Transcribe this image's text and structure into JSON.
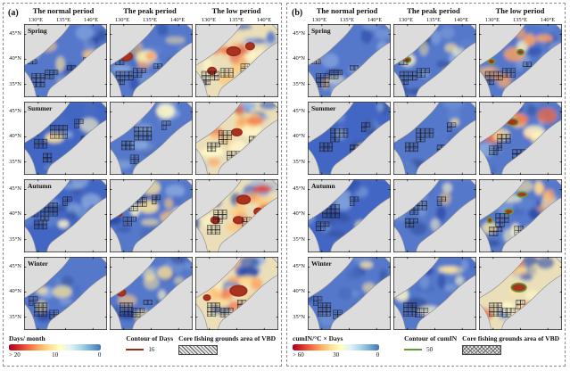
{
  "figure": {
    "type": "multi-panel seasonal map grid",
    "region": "Sea of Japan",
    "seasons": [
      "Spring",
      "Summer",
      "Autumn",
      "Winter"
    ],
    "periods": [
      "normal",
      "peak",
      "low"
    ]
  },
  "panels": [
    {
      "label": "(a)",
      "column_titles": [
        "The normal period",
        "The peak period",
        "The low period"
      ],
      "lon_ticks": [
        "130°E",
        "135°E",
        "140°E"
      ],
      "lat_ticks": [
        "45°N",
        "40°N",
        "35°N"
      ],
      "contour_color": "#9c2b1a",
      "legend": {
        "colorbar_title": "Days/ month",
        "colorbar_labels": [
          "> 20",
          "10",
          "0"
        ],
        "colorbar_colors": [
          "#a50026",
          "#d73027",
          "#f46d43",
          "#fdae61",
          "#fee090",
          "#ffffbf",
          "#e0f3f8",
          "#abd9e9",
          "#74add1",
          "#4575b4"
        ],
        "contour_title": "Contour of Days",
        "contour_value": "16",
        "hatch_title": "Core fishing grounds area of VBD",
        "hatch_style": "diag"
      },
      "rows": [
        {
          "season": "Spring",
          "maps": [
            {
              "period": "normal",
              "warmth": 0.22,
              "seed": 11,
              "contours": [],
              "hatch": [
                [
                  17,
                  66,
                  9
                ],
                [
                  33,
                  62,
                  5
                ],
                [
                  10,
                  47,
                  2
                ],
                [
                  57,
                  54,
                  2
                ],
                [
                  74,
                  42,
                  1
                ]
              ]
            },
            {
              "period": "peak",
              "warmth": 0.38,
              "seed": 12,
              "contours": [
                [
                  20,
                  38,
                  7,
                  5
                ]
              ],
              "hatch": [
                [
                  18,
                  66,
                  10
                ],
                [
                  36,
                  60,
                  5
                ],
                [
                  12,
                  48,
                  2
                ],
                [
                  58,
                  52,
                  2
                ]
              ]
            },
            {
              "period": "low",
              "warmth": 0.62,
              "seed": 13,
              "contours": [
                [
                  22,
                  26,
                  6,
                  4
                ],
                [
                  46,
                  32,
                  8,
                  5
                ],
                [
                  20,
                  55,
                  5,
                  4
                ],
                [
                  66,
                  26,
                  5,
                  4
                ]
              ],
              "hatch": [
                [
                  18,
                  66,
                  10
                ],
                [
                  38,
                  60,
                  6
                ],
                [
                  60,
                  52,
                  3
                ]
              ]
            }
          ]
        },
        {
          "season": "Summer",
          "maps": [
            {
              "period": "normal",
              "warmth": 0.06,
              "seed": 14,
              "contours": [],
              "hatch": [
                [
                  42,
                  38,
                  12
                ],
                [
                  20,
                  52,
                  6
                ],
                [
                  28,
                  66,
                  4
                ],
                [
                  66,
                  26,
                  3
                ],
                [
                  74,
                  46,
                  3
                ],
                [
                  12,
                  40,
                  2
                ]
              ]
            },
            {
              "period": "peak",
              "warmth": 0.14,
              "seed": 15,
              "contours": [],
              "hatch": [
                [
                  40,
                  40,
                  12
                ],
                [
                  22,
                  54,
                  6
                ],
                [
                  30,
                  68,
                  4
                ],
                [
                  68,
                  28,
                  3
                ],
                [
                  76,
                  48,
                  2
                ]
              ]
            },
            {
              "period": "low",
              "warmth": 0.58,
              "seed": 16,
              "contours": [
                [
                  50,
                  36,
                  6,
                  4
                ]
              ],
              "hatch": [
                [
                  36,
                  42,
                  8
                ],
                [
                  22,
                  56,
                  5
                ],
                [
                  46,
                  66,
                  5
                ],
                [
                  70,
                  46,
                  3
                ]
              ]
            }
          ]
        },
        {
          "season": "Autumn",
          "maps": [
            {
              "period": "normal",
              "warmth": 0.03,
              "seed": 17,
              "contours": [],
              "hatch": [
                [
                  30,
                  38,
                  14
                ],
                [
                  20,
                  56,
                  6
                ],
                [
                  52,
                  26,
                  3
                ],
                [
                  12,
                  44,
                  2
                ]
              ]
            },
            {
              "period": "peak",
              "warmth": 0.28,
              "seed": 18,
              "contours": [
                [
                  28,
                  17,
                  4,
                  3
                ],
                [
                  12,
                  40,
                  3,
                  3
                ]
              ],
              "hatch": [
                [
                  34,
                  32,
                  10
                ],
                [
                  24,
                  52,
                  5
                ],
                [
                  56,
                  24,
                  3
                ]
              ]
            },
            {
              "period": "low",
              "warmth": 0.78,
              "seed": 19,
              "contours": [
                [
                  28,
                  22,
                  6,
                  4
                ],
                [
                  58,
                  24,
                  8,
                  5
                ],
                [
                  24,
                  48,
                  5,
                  4
                ],
                [
                  52,
                  48,
                  6,
                  4
                ],
                [
                  76,
                  38,
                  5,
                  4
                ]
              ],
              "hatch": [
                [
                  30,
                  44,
                  8
                ],
                [
                  22,
                  62,
                  6
                ],
                [
                  62,
                  50,
                  3
                ]
              ]
            }
          ]
        },
        {
          "season": "Winter",
          "maps": [
            {
              "period": "normal",
              "warmth": 0.15,
              "seed": 20,
              "contours": [],
              "hatch": [
                [
                  20,
                  62,
                  9
                ],
                [
                  11,
                  52,
                  3
                ],
                [
                  36,
                  68,
                  4
                ]
              ]
            },
            {
              "period": "peak",
              "warmth": 0.32,
              "seed": 21,
              "contours": [
                [
                  28,
                  22,
                  4,
                  3
                ],
                [
                  14,
                  42,
                  5,
                  4
                ]
              ],
              "hatch": [
                [
                  20,
                  62,
                  9
                ],
                [
                  34,
                  68,
                  5
                ],
                [
                  46,
                  56,
                  2
                ]
              ]
            },
            {
              "period": "low",
              "warmth": 0.72,
              "seed": 22,
              "contours": [
                [
                  22,
                  24,
                  5,
                  4
                ],
                [
                  52,
                  40,
                  10,
                  6
                ],
                [
                  14,
                  48,
                  4,
                  3
                ]
              ],
              "hatch": [
                [
                  22,
                  62,
                  8
                ],
                [
                  38,
                  68,
                  5
                ],
                [
                  56,
                  56,
                  3
                ]
              ]
            }
          ]
        }
      ]
    },
    {
      "label": "(b)",
      "column_titles": [
        "The normal period",
        "The peak period",
        "The low period"
      ],
      "lon_ticks": [
        "130°E",
        "135°E",
        "140°E"
      ],
      "lat_ticks": [
        "45°N",
        "40°N",
        "35°N"
      ],
      "contour_color": "#679a3c",
      "legend": {
        "colorbar_title": "cumIN/°C × Days",
        "colorbar_labels": [
          "> 60",
          "30",
          "0"
        ],
        "colorbar_colors": [
          "#a50026",
          "#d73027",
          "#f46d43",
          "#fdae61",
          "#fee090",
          "#ffffbf",
          "#e0f3f8",
          "#abd9e9",
          "#74add1",
          "#4575b4"
        ],
        "contour_title": "Contour of cumIN",
        "contour_value": "50",
        "hatch_title": "Core fishing grounds area of VBD",
        "hatch_style": "cross"
      },
      "rows": [
        {
          "season": "Spring",
          "maps": [
            {
              "period": "normal",
              "warmth": 0.14,
              "seed": 31,
              "contours": [],
              "hatch": [
                [
                  18,
                  66,
                  9
                ],
                [
                  34,
                  62,
                  5
                ],
                [
                  10,
                  47,
                  2
                ],
                [
                  56,
                  54,
                  2
                ]
              ]
            },
            {
              "period": "peak",
              "warmth": 0.32,
              "seed": 32,
              "contours": [
                [
                  17,
                  42,
                  4,
                  3
                ]
              ],
              "hatch": [
                [
                  18,
                  66,
                  10
                ],
                [
                  36,
                  60,
                  5
                ],
                [
                  12,
                  48,
                  2
                ]
              ]
            },
            {
              "period": "low",
              "warmth": 0.48,
              "seed": 33,
              "contours": [
                [
                  15,
                  44,
                  4,
                  3
                ],
                [
                  50,
                  33,
                  4,
                  3
                ]
              ],
              "hatch": [
                [
                  18,
                  66,
                  10
                ],
                [
                  36,
                  60,
                  6
                ],
                [
                  58,
                  50,
                  2
                ]
              ]
            }
          ]
        },
        {
          "season": "Summer",
          "maps": [
            {
              "period": "normal",
              "warmth": 0.05,
              "seed": 34,
              "contours": [],
              "hatch": [
                [
                  38,
                  42,
                  10
                ],
                [
                  22,
                  56,
                  6
                ],
                [
                  56,
                  56,
                  4
                ],
                [
                  70,
                  30,
                  3
                ]
              ]
            },
            {
              "period": "peak",
              "warmth": 0.13,
              "seed": 35,
              "contours": [],
              "hatch": [
                [
                  38,
                  42,
                  10
                ],
                [
                  22,
                  56,
                  6
                ],
                [
                  58,
                  56,
                  3
                ],
                [
                  70,
                  30,
                  3
                ]
              ]
            },
            {
              "period": "low",
              "warmth": 0.55,
              "seed": 36,
              "contours": [
                [
                  40,
                  24,
                  7,
                  4
                ]
              ],
              "hatch": [
                [
                  30,
                  46,
                  7
                ],
                [
                  20,
                  60,
                  5
                ],
                [
                  48,
                  64,
                  5
                ]
              ]
            }
          ]
        },
        {
          "season": "Autumn",
          "maps": [
            {
              "period": "normal",
              "warmth": 0.04,
              "seed": 37,
              "contours": [],
              "hatch": [
                [
                  28,
                  40,
                  12
                ],
                [
                  18,
                  58,
                  5
                ],
                [
                  56,
                  26,
                  3
                ]
              ]
            },
            {
              "period": "peak",
              "warmth": 0.18,
              "seed": 38,
              "contours": [],
              "hatch": [
                [
                  30,
                  36,
                  10
                ],
                [
                  22,
                  54,
                  5
                ],
                [
                  58,
                  26,
                  3
                ]
              ]
            },
            {
              "period": "low",
              "warmth": 0.5,
              "seed": 39,
              "contours": [
                [
                  52,
                  18,
                  6,
                  3
                ],
                [
                  36,
                  38,
                  5,
                  3
                ],
                [
                  13,
                  48,
                  3,
                  3
                ]
              ],
              "hatch": [
                [
                  28,
                  48,
                  8
                ],
                [
                  20,
                  64,
                  5
                ],
                [
                  48,
                  60,
                  4
                ]
              ]
            }
          ]
        },
        {
          "season": "Winter",
          "maps": [
            {
              "period": "normal",
              "warmth": 0.14,
              "seed": 40,
              "contours": [],
              "hatch": [
                [
                  20,
                  62,
                  9
                ],
                [
                  12,
                  52,
                  3
                ],
                [
                  36,
                  68,
                  4
                ]
              ]
            },
            {
              "period": "peak",
              "warmth": 0.24,
              "seed": 41,
              "contours": [
                [
                  17,
                  35,
                  3,
                  2
                ]
              ],
              "hatch": [
                [
                  20,
                  62,
                  9
                ],
                [
                  34,
                  68,
                  5
                ]
              ]
            },
            {
              "period": "low",
              "warmth": 0.62,
              "seed": 42,
              "contours": [
                [
                  19,
                  28,
                  5,
                  4
                ],
                [
                  48,
                  36,
                  9,
                  5
                ]
              ],
              "hatch": [
                [
                  20,
                  62,
                  9
                ],
                [
                  36,
                  68,
                  5
                ],
                [
                  50,
                  56,
                  3
                ]
              ]
            }
          ]
        }
      ]
    }
  ],
  "map_colors": {
    "land": "#dcdcdc",
    "coast": "#909090",
    "sea_base_blue": "#5478cb",
    "sea_deep_blue": "#4366c4",
    "warm_base": "#eadfb9",
    "contour_fill": "#a8341f",
    "frame": "#333333"
  }
}
